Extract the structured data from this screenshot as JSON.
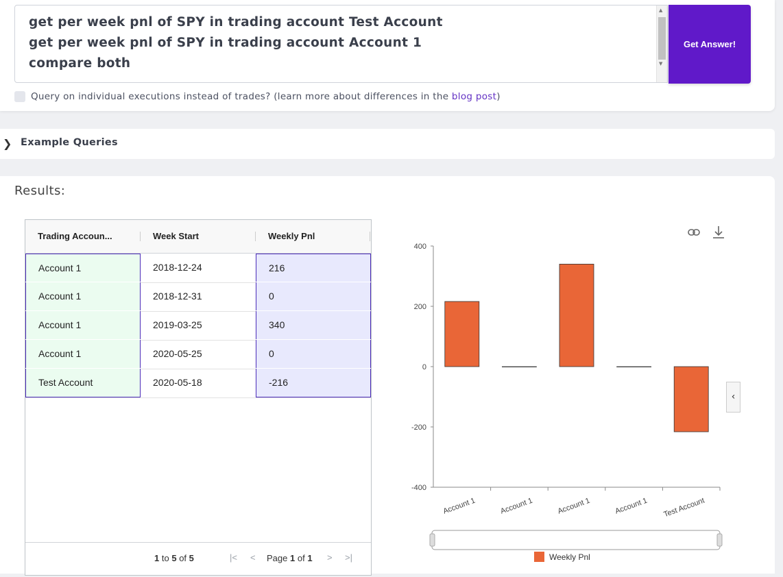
{
  "query": {
    "lines": [
      "get per week pnl of SPY in trading account Test Account",
      "get per week pnl of SPY in trading account Account 1",
      "compare both"
    ],
    "submit_label": "Get Answer!",
    "checkbox_label": "Query on individual executions instead of trades? (learn more about differences in the ",
    "link_text": "blog post",
    "checkbox_suffix": ")"
  },
  "examples": {
    "label": "Example Queries"
  },
  "results": {
    "title": "Results:",
    "table": {
      "columns": [
        "Trading Accoun...",
        "Week Start",
        "Weekly Pnl"
      ],
      "rows": [
        [
          "Account 1",
          "2018-12-24",
          "216"
        ],
        [
          "Account 1",
          "2018-12-31",
          "0"
        ],
        [
          "Account 1",
          "2019-03-25",
          "340"
        ],
        [
          "Account 1",
          "2020-05-25",
          "0"
        ],
        [
          "Test Account",
          "2020-05-18",
          "-216"
        ]
      ],
      "footer": {
        "range_from": "1",
        "range_to_word": "to",
        "range_to": "5",
        "of_word": "of",
        "total": "5",
        "page_word": "Page",
        "page": "1",
        "page_of": "of",
        "pages": "1"
      }
    },
    "chart_data": {
      "type": "bar",
      "categories": [
        "Account 1",
        "Account 1",
        "Account 1",
        "Account 1",
        "Test Account"
      ],
      "series": [
        {
          "name": "Weekly Pnl",
          "values": [
            216,
            0,
            340,
            0,
            -216
          ],
          "color": "#e96637"
        }
      ],
      "ylim": [
        -400,
        400
      ],
      "yticks": [
        400,
        200,
        0,
        -200,
        -400
      ],
      "legend": "bottom"
    },
    "chart_icons": [
      "link-icon",
      "download-icon"
    ],
    "side_button_glyph": "‹"
  },
  "colors": {
    "accent": "#6019c9",
    "bar": "#e96637",
    "link": "#6332c4"
  }
}
